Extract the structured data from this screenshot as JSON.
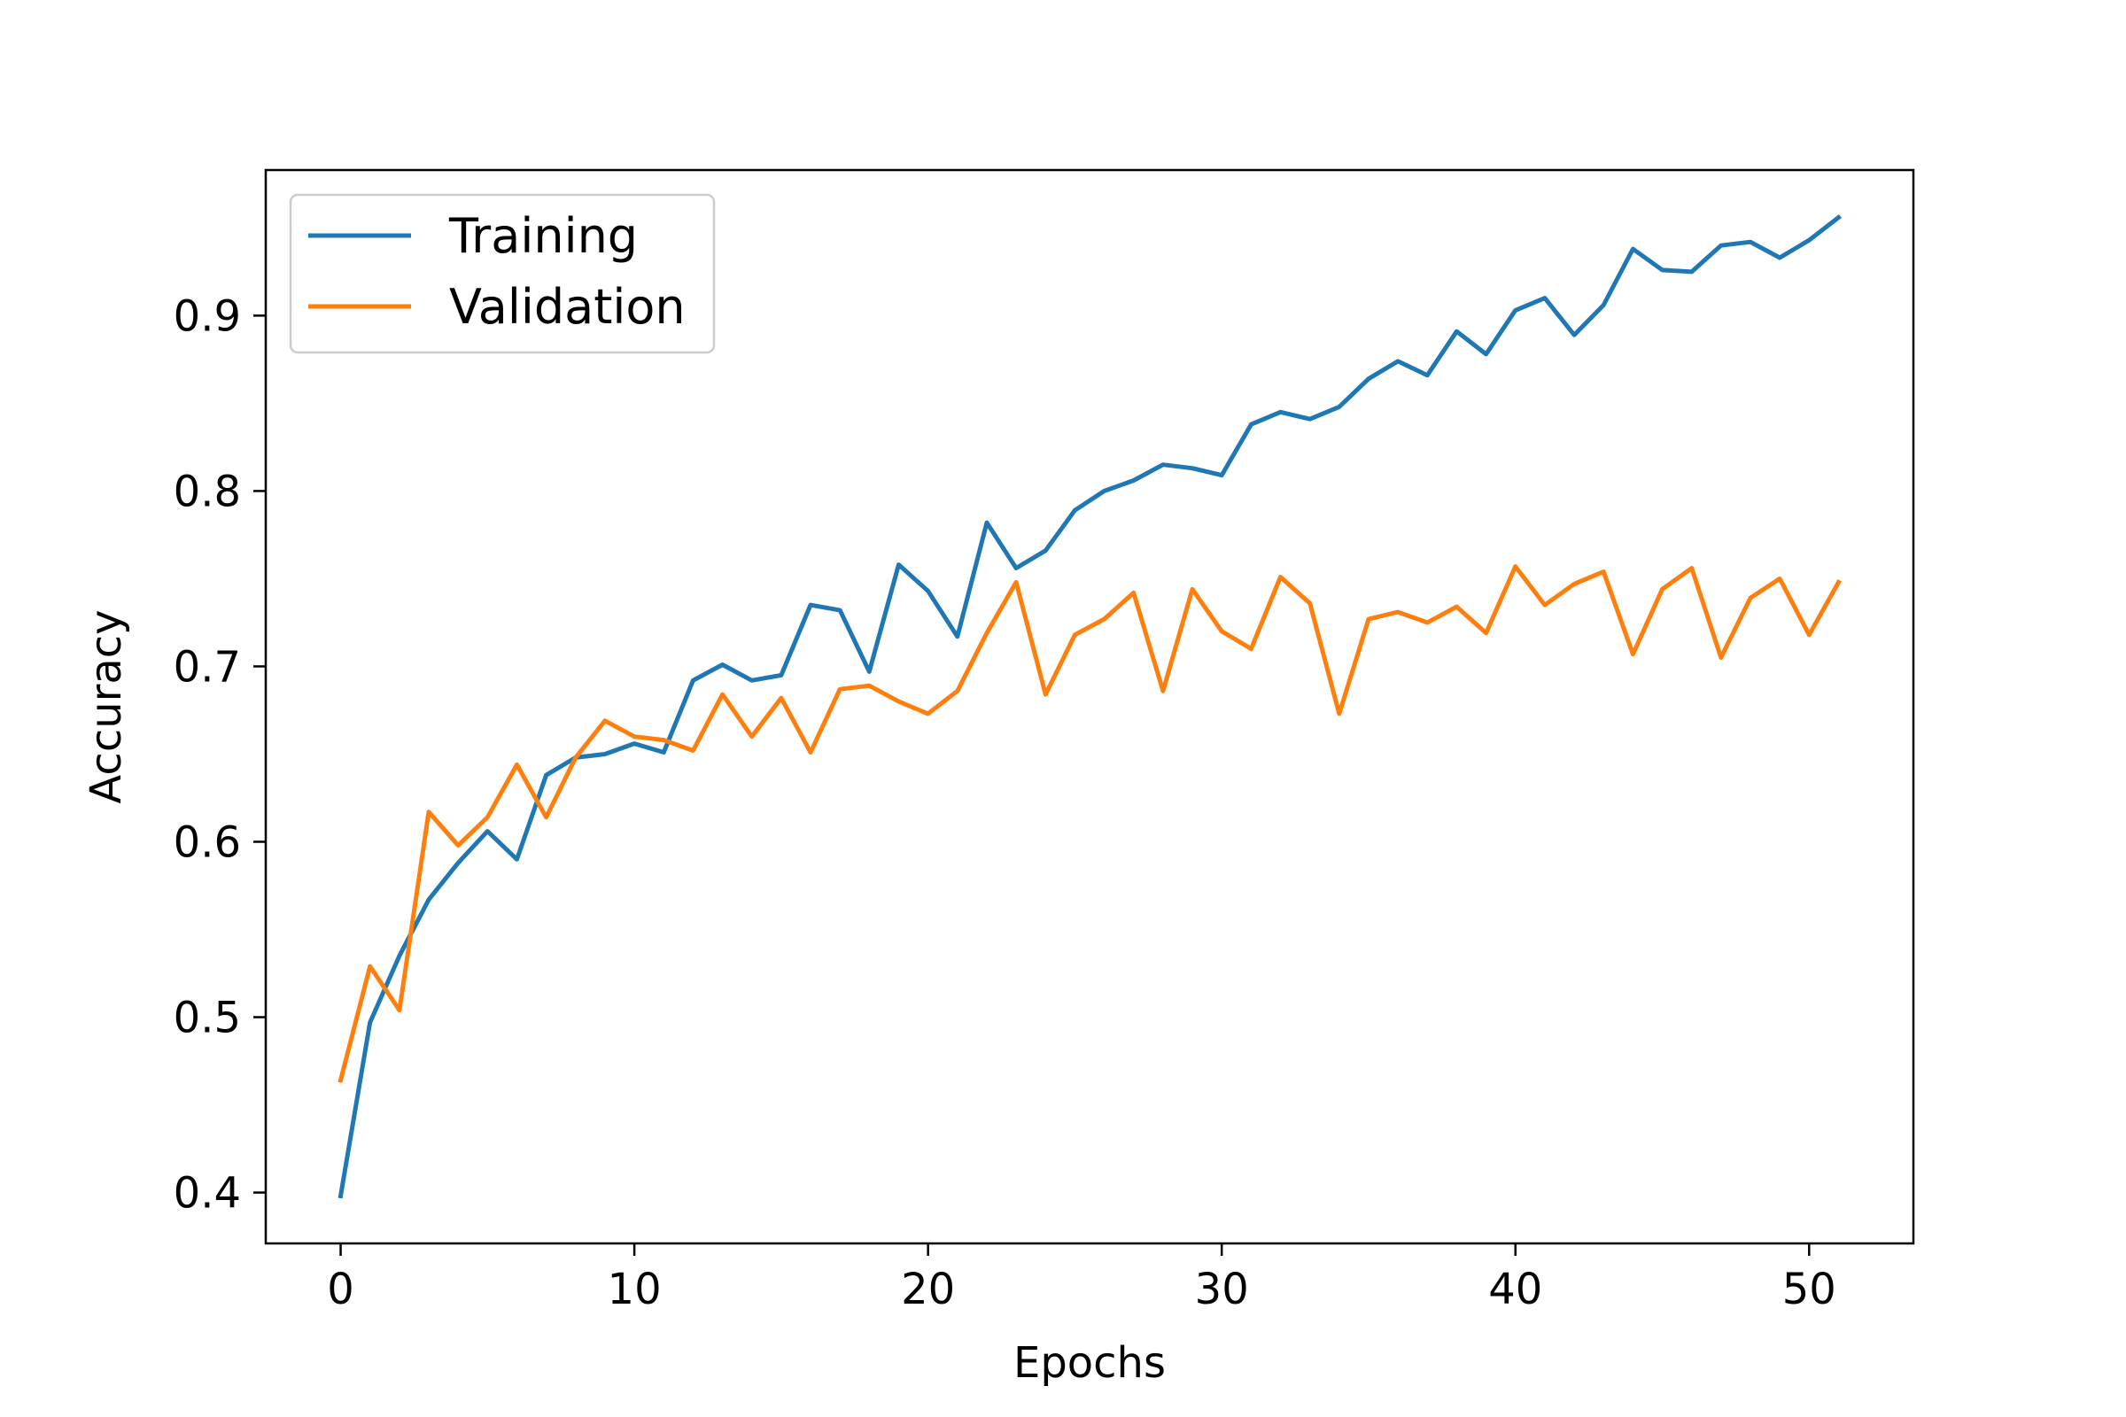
{
  "chart_data": {
    "type": "line",
    "title": "",
    "xlabel": "Epochs",
    "ylabel": "Accuracy",
    "xlim": [
      -2.55,
      53.55
    ],
    "ylim": [
      0.371,
      0.983
    ],
    "xticks": [
      0,
      10,
      20,
      30,
      40,
      50
    ],
    "yticks": [
      0.4,
      0.5,
      0.6,
      0.7,
      0.8,
      0.9
    ],
    "xtick_labels": [
      "0",
      "10",
      "20",
      "30",
      "40",
      "50"
    ],
    "ytick_labels": [
      "0.4",
      "0.5",
      "0.6",
      "0.7",
      "0.8",
      "0.9"
    ],
    "grid": false,
    "legend_position": "upper-left",
    "x": [
      0,
      1,
      2,
      3,
      4,
      5,
      6,
      7,
      8,
      9,
      10,
      11,
      12,
      13,
      14,
      15,
      16,
      17,
      18,
      19,
      20,
      21,
      22,
      23,
      24,
      25,
      26,
      27,
      28,
      29,
      30,
      31,
      32,
      33,
      34,
      35,
      36,
      37,
      38,
      39,
      40,
      41,
      42,
      43,
      44,
      45,
      46,
      47,
      48,
      49,
      50,
      51
    ],
    "series": [
      {
        "name": "Training",
        "color": "#1f77b4",
        "values": [
          0.398,
          0.497,
          0.535,
          0.567,
          0.588,
          0.606,
          0.59,
          0.638,
          0.648,
          0.65,
          0.656,
          0.651,
          0.692,
          0.701,
          0.692,
          0.695,
          0.735,
          0.732,
          0.697,
          0.758,
          0.743,
          0.717,
          0.782,
          0.756,
          0.766,
          0.789,
          0.8,
          0.806,
          0.815,
          0.813,
          0.809,
          0.838,
          0.845,
          0.841,
          0.848,
          0.864,
          0.874,
          0.866,
          0.891,
          0.878,
          0.903,
          0.91,
          0.889,
          0.906,
          0.938,
          0.926,
          0.925,
          0.94,
          0.942,
          0.933,
          0.943,
          0.956
        ]
      },
      {
        "name": "Validation",
        "color": "#ff7f0e",
        "values": [
          0.464,
          0.529,
          0.504,
          0.617,
          0.598,
          0.614,
          0.644,
          0.614,
          0.648,
          0.669,
          0.66,
          0.658,
          0.652,
          0.684,
          0.66,
          0.682,
          0.651,
          0.687,
          0.689,
          0.68,
          0.673,
          0.686,
          0.719,
          0.748,
          0.684,
          0.718,
          0.727,
          0.742,
          0.686,
          0.744,
          0.72,
          0.71,
          0.751,
          0.736,
          0.673,
          0.727,
          0.731,
          0.725,
          0.734,
          0.719,
          0.757,
          0.735,
          0.747,
          0.754,
          0.707,
          0.744,
          0.756,
          0.705,
          0.739,
          0.75,
          0.718,
          0.748
        ]
      }
    ]
  }
}
